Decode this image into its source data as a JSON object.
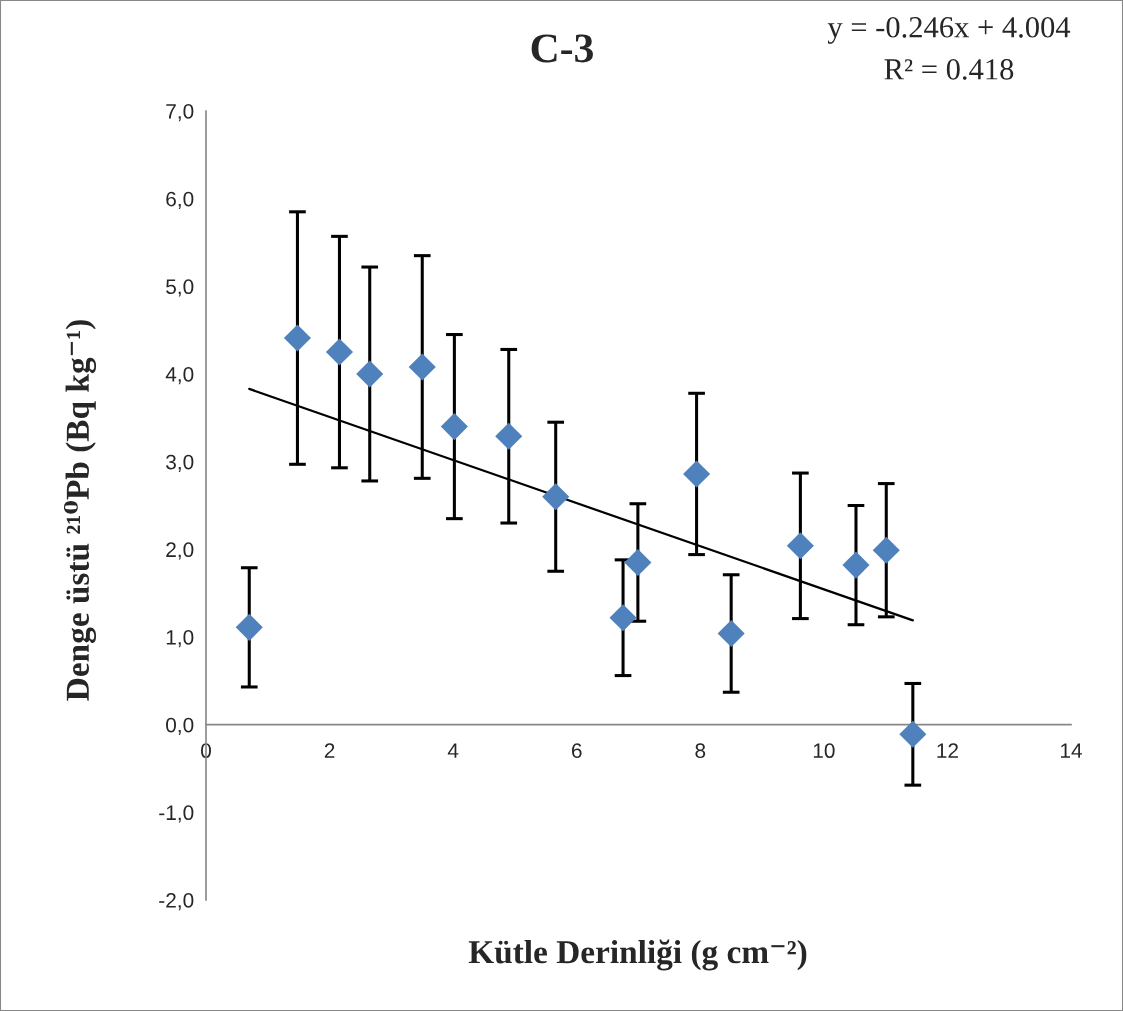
{
  "chart_data": {
    "type": "scatter",
    "title": "C-3",
    "xlabel": "Kütle Derinliği (g cm⁻²)",
    "ylabel": "Denge üstü ²¹⁰Pb (Bq kg⁻¹)",
    "annotations": [
      "y = -0.246x + 4.004",
      "R² = 0.418"
    ],
    "xlim": [
      0,
      14
    ],
    "xticks": [
      0,
      2,
      4,
      6,
      8,
      10,
      12,
      14
    ],
    "ylim": [
      -2,
      7
    ],
    "yticks": [
      {
        "value": -2,
        "label": "-2,0"
      },
      {
        "value": -1,
        "label": "-1,0"
      },
      {
        "value": 0,
        "label": "0,0"
      },
      {
        "value": 1,
        "label": "1,0"
      },
      {
        "value": 2,
        "label": "2,0"
      },
      {
        "value": 3,
        "label": "3,0"
      },
      {
        "value": 4,
        "label": "4,0"
      },
      {
        "value": 5,
        "label": "5,0"
      },
      {
        "value": 6,
        "label": "6,0"
      },
      {
        "value": 7,
        "label": "7,0"
      }
    ],
    "grid": false,
    "series": [
      {
        "color": "#4f81bd",
        "marker": "diamond",
        "x": [
          0.7,
          1.48,
          2.16,
          2.65,
          3.5,
          4.02,
          4.9,
          5.66,
          6.75,
          6.99,
          7.94,
          8.5,
          9.62,
          10.52,
          11.01,
          11.44
        ],
        "values": [
          1.11,
          4.41,
          4.25,
          4.0,
          4.08,
          3.4,
          3.29,
          2.6,
          1.22,
          1.85,
          2.86,
          1.04,
          2.04,
          1.82,
          1.99,
          -0.11
        ],
        "errors": [
          0.68,
          1.44,
          1.32,
          1.22,
          1.27,
          1.05,
          0.99,
          0.85,
          0.66,
          0.67,
          0.92,
          0.67,
          0.83,
          0.68,
          0.76,
          0.58
        ]
      },
      {
        "type": "line",
        "color": "#000000",
        "line_style": "solid",
        "x": [
          0.7,
          11.44
        ],
        "values": [
          3.83,
          1.19
        ]
      }
    ]
  }
}
